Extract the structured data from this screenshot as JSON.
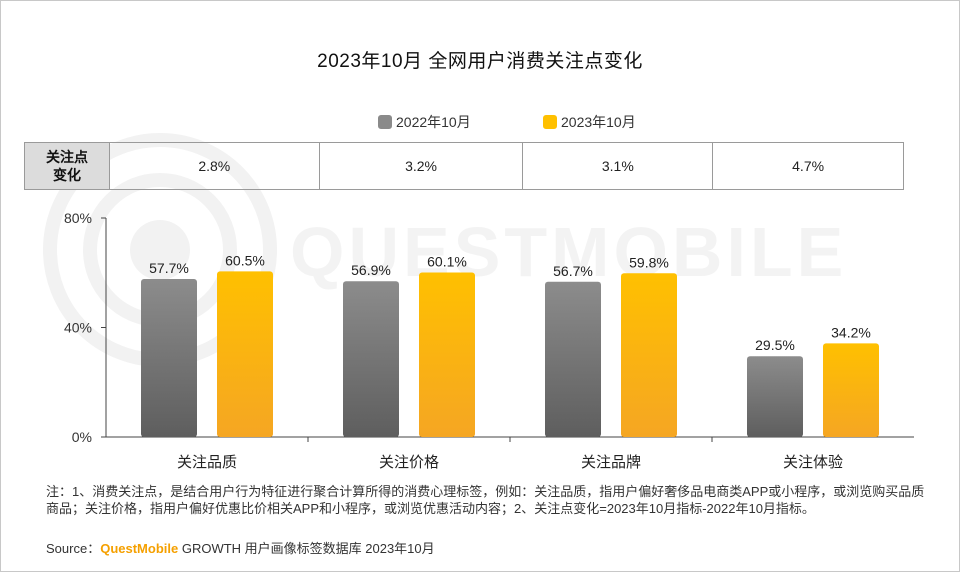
{
  "title": "2023年10月 全网用户消费关注点变化",
  "legend": [
    {
      "name": "2022年10月",
      "color": "#8a8a8a"
    },
    {
      "name": "2023年10月",
      "color": "#ffc000"
    }
  ],
  "change_table": {
    "header": "关注点\n变化",
    "values": [
      "2.8%",
      "3.2%",
      "3.1%",
      "4.7%"
    ]
  },
  "chart_data": {
    "type": "bar",
    "categories": [
      "关注品质",
      "关注价格",
      "关注品牌",
      "关注体验"
    ],
    "series": [
      {
        "name": "2022年10月",
        "values": [
          57.7,
          56.9,
          56.7,
          29.5
        ],
        "color": "#8a8a8a"
      },
      {
        "name": "2023年10月",
        "values": [
          60.5,
          60.1,
          59.8,
          34.2
        ],
        "color": "#ffc000"
      }
    ],
    "data_labels": [
      [
        "57.7%",
        "56.9%",
        "56.7%",
        "29.5%"
      ],
      [
        "60.5%",
        "60.1%",
        "59.8%",
        "34.2%"
      ]
    ],
    "ylim": [
      0,
      80
    ],
    "yticks": [
      "0%",
      "40%",
      "80%"
    ],
    "ytick_values": [
      0,
      40,
      80
    ],
    "grid": false,
    "legend_position": "top"
  },
  "notes": "注：1、消费关注点，是结合用户行为特征进行聚合计算所得的消费心理标签，例如：关注品质，指用户偏好奢侈品电商类APP或小程序，或浏览购买品质商品；关注价格，指用户偏好优惠比价相关APP和小程序，或浏览优惠活动内容；2、关注点变化=2023年10月指标-2022年10月指标。",
  "source": {
    "prefix": "Source：",
    "brand": "QuestMobile",
    "rest": " GROWTH 用户画像标签数据库 2023年10月"
  },
  "watermark": "QUESTMOBILE"
}
